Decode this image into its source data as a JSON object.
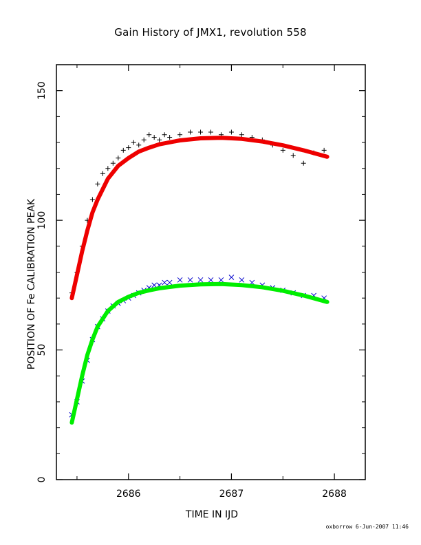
{
  "chart_data": {
    "type": "scatter",
    "title": "Gain History of JMX1, revolution 558",
    "xlabel": "TIME IN IJD",
    "ylabel": "POSITION OF Fe CALIBRATION PEAK",
    "xlim": [
      2685.3,
      2688.3
    ],
    "ylim": [
      0,
      160
    ],
    "x_ticks": [
      2686,
      2687,
      2688
    ],
    "y_ticks": [
      0,
      50,
      100,
      150
    ],
    "grid": false,
    "series": [
      {
        "marker": "plus",
        "color": "#000000",
        "x": [
          2685.45,
          2685.5,
          2685.55,
          2685.6,
          2685.65,
          2685.7,
          2685.75,
          2685.8,
          2685.85,
          2685.9,
          2685.95,
          2686.0,
          2686.05,
          2686.1,
          2686.15,
          2686.2,
          2686.25,
          2686.3,
          2686.35,
          2686.4,
          2686.5,
          2686.6,
          2686.7,
          2686.8,
          2686.9,
          2687.0,
          2687.1,
          2687.2,
          2687.3,
          2687.4,
          2687.5,
          2687.6,
          2687.7,
          2687.8,
          2687.9
        ],
        "y": [
          72,
          80,
          90,
          100,
          108,
          114,
          118,
          120,
          122,
          124,
          127,
          128,
          130,
          129,
          131,
          133,
          132,
          131,
          133,
          132,
          133,
          134,
          134,
          134,
          133,
          134,
          133,
          132,
          131,
          129,
          127,
          125,
          122,
          126,
          127
        ]
      },
      {
        "marker": "cross",
        "color": "#0000cc",
        "x": [
          2685.45,
          2685.5,
          2685.55,
          2685.6,
          2685.65,
          2685.7,
          2685.75,
          2685.8,
          2685.85,
          2685.9,
          2685.95,
          2686.0,
          2686.05,
          2686.1,
          2686.15,
          2686.2,
          2686.25,
          2686.3,
          2686.35,
          2686.4,
          2686.5,
          2686.6,
          2686.7,
          2686.8,
          2686.9,
          2687.0,
          2687.1,
          2687.2,
          2687.3,
          2687.4,
          2687.5,
          2687.6,
          2687.7,
          2687.8,
          2687.9
        ],
        "y": [
          25,
          30,
          38,
          46,
          54,
          59,
          62,
          65,
          67,
          68,
          69,
          70,
          71,
          72,
          73,
          74,
          75,
          75,
          76,
          76,
          77,
          77,
          77,
          77,
          77,
          78,
          77,
          76,
          75,
          74,
          73,
          72,
          71,
          71,
          70
        ]
      },
      {
        "style": "fit-line",
        "color": "#ee0000",
        "x": [
          2685.45,
          2685.5,
          2685.55,
          2685.6,
          2685.65,
          2685.7,
          2685.8,
          2685.9,
          2686.0,
          2686.1,
          2686.2,
          2686.3,
          2686.5,
          2686.7,
          2686.9,
          2687.1,
          2687.3,
          2687.5,
          2687.7,
          2687.93
        ],
        "y": [
          70,
          79,
          88,
          96,
          103,
          108,
          116,
          121,
          124,
          126.5,
          128,
          129.3,
          130.8,
          131.6,
          131.8,
          131.4,
          130.4,
          128.9,
          127,
          124.5
        ]
      },
      {
        "style": "fit-line",
        "color": "#00ee00",
        "x": [
          2685.45,
          2685.5,
          2685.55,
          2685.6,
          2685.65,
          2685.7,
          2685.8,
          2685.9,
          2686.0,
          2686.1,
          2686.2,
          2686.3,
          2686.5,
          2686.7,
          2686.9,
          2687.1,
          2687.3,
          2687.5,
          2687.7,
          2687.93
        ],
        "y": [
          22,
          31,
          40,
          48,
          54,
          59,
          65,
          68.5,
          70.5,
          72,
          73,
          73.8,
          74.8,
          75.3,
          75.4,
          75,
          74.2,
          72.8,
          71,
          68.5
        ]
      }
    ]
  },
  "footer": {
    "stamp": "oxborrow  6-Jun-2007 11:46"
  }
}
